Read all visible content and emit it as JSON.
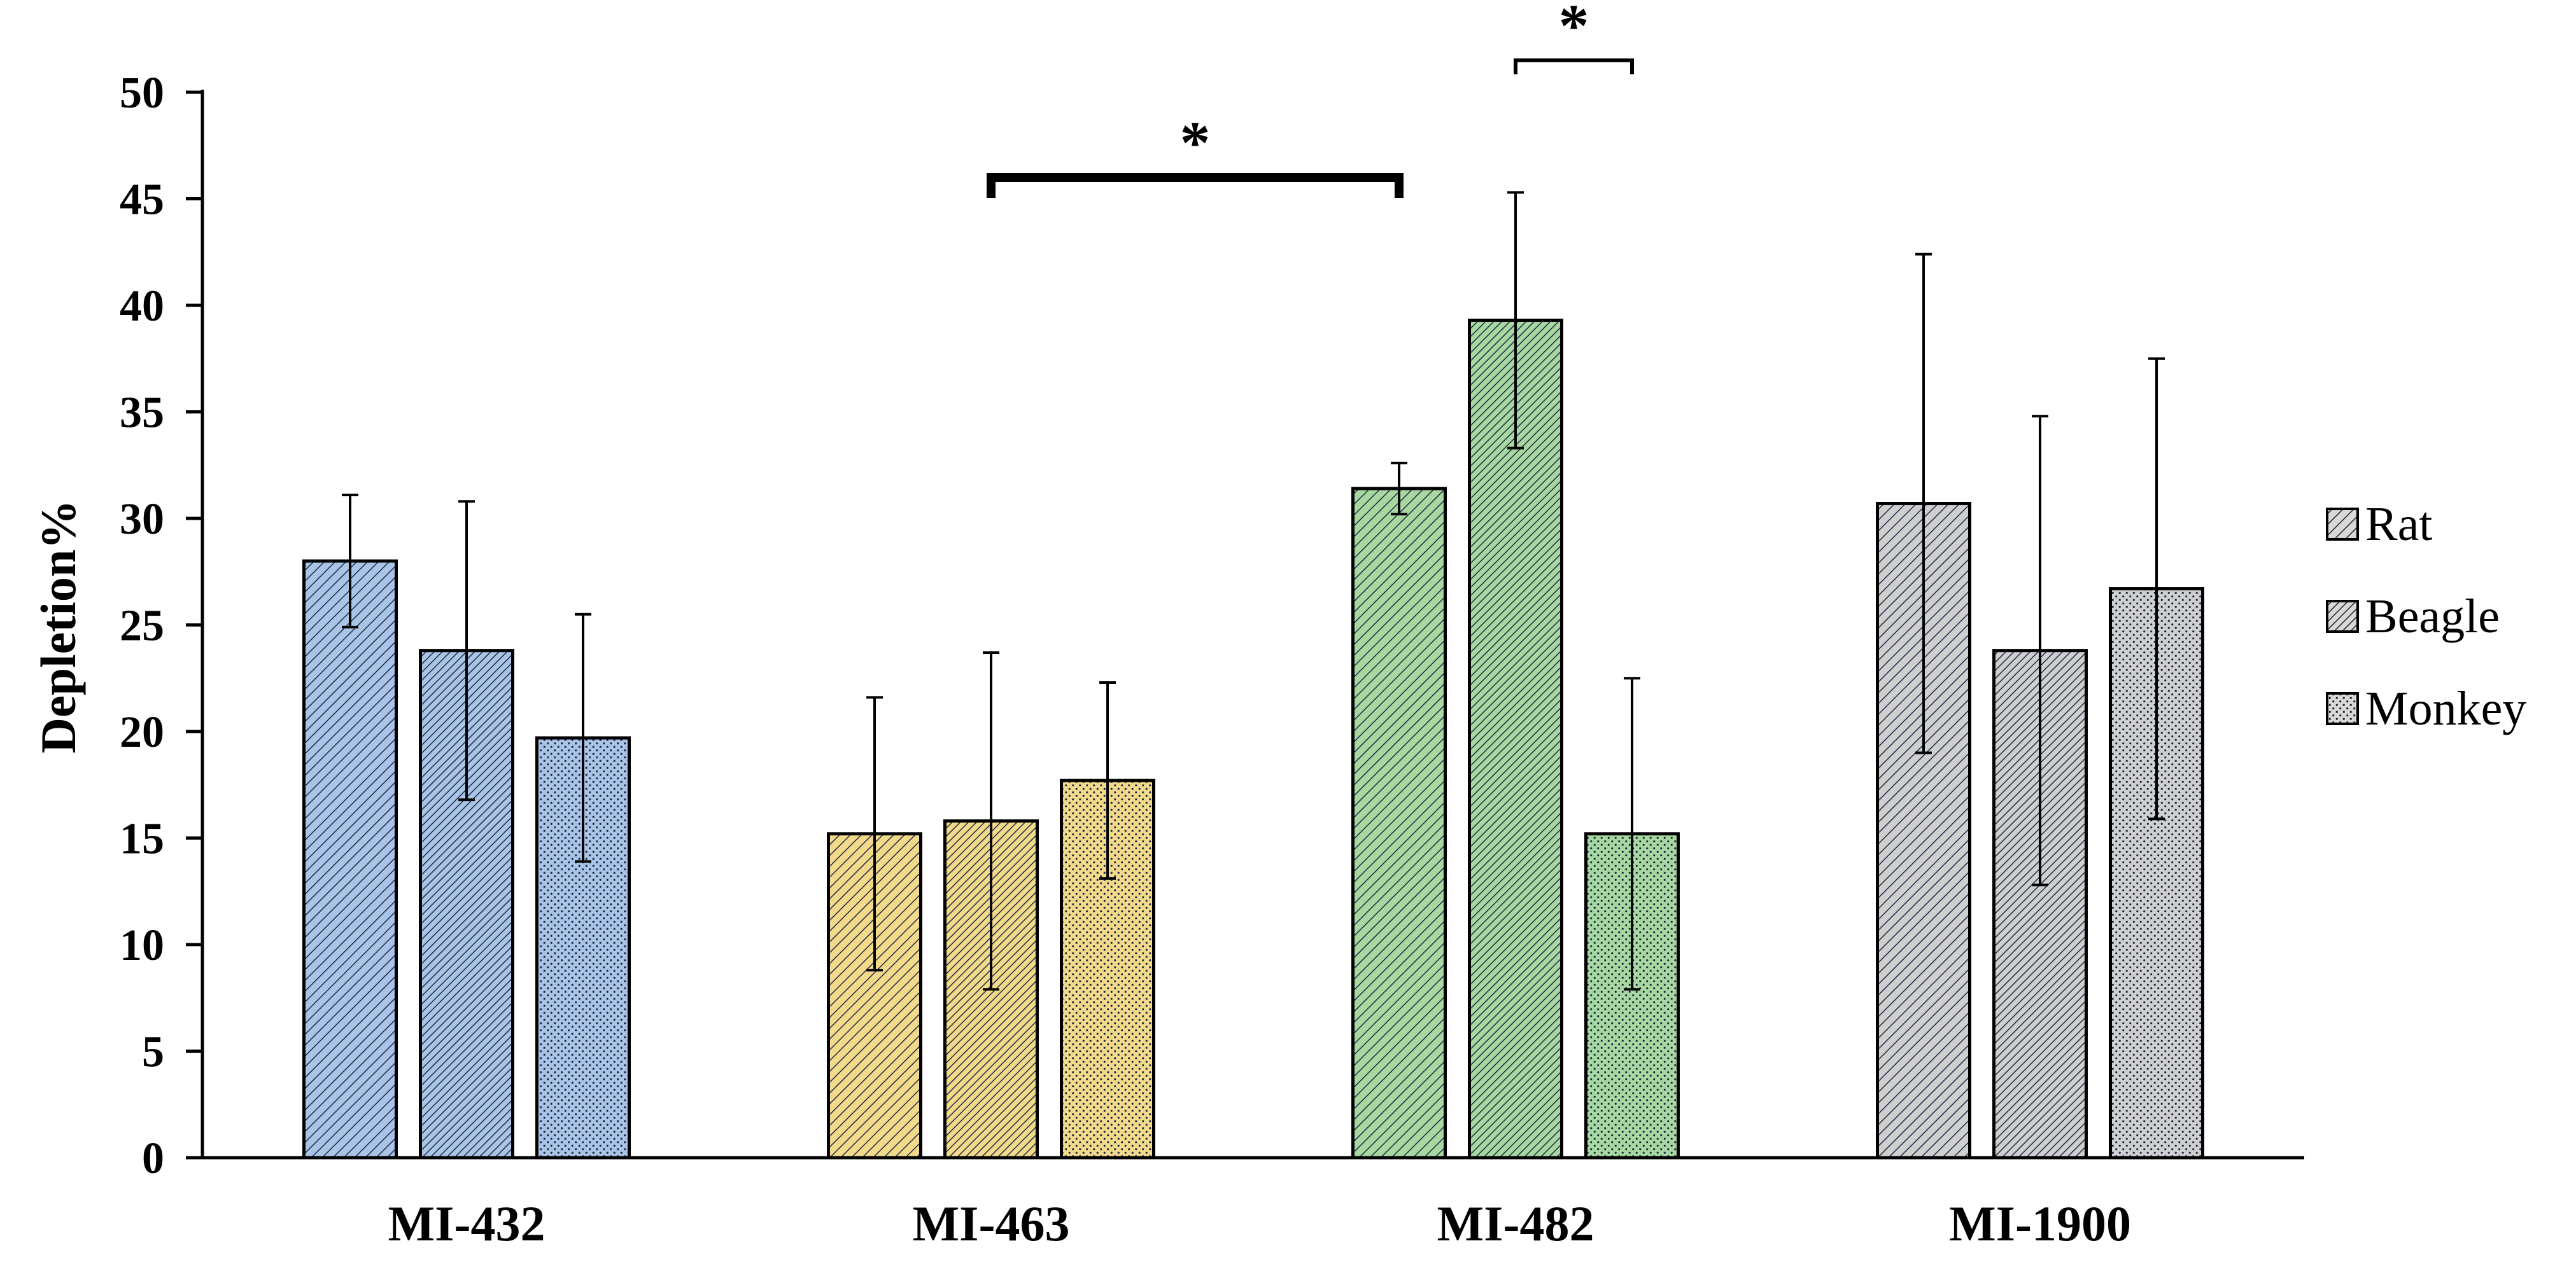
{
  "chart_data": {
    "type": "bar",
    "title": "",
    "xlabel": "",
    "ylabel": "Depletion%",
    "ylim": [
      0,
      50
    ],
    "yticks": [
      0,
      5,
      10,
      15,
      20,
      25,
      30,
      35,
      40,
      45,
      50
    ],
    "categories": [
      "MI-432",
      "MI-463",
      "MI-482",
      "MI-1900"
    ],
    "category_colors": [
      "#a9c4e6",
      "#f3da8a",
      "#a8d8a0",
      "#cfcfcf"
    ],
    "series": [
      {
        "name": "Rat",
        "pattern": "diag-wide",
        "values": [
          28.0,
          15.2,
          31.4,
          30.7
        ],
        "errors": [
          3.1,
          6.4,
          1.2,
          11.7
        ]
      },
      {
        "name": "Beagle",
        "pattern": "diag-dense",
        "values": [
          23.8,
          15.8,
          39.3,
          23.8
        ],
        "errors": [
          7.0,
          7.9,
          6.0,
          11.0
        ]
      },
      {
        "name": "Monkey",
        "pattern": "dots",
        "values": [
          19.7,
          17.7,
          15.2,
          26.7
        ],
        "errors": [
          5.8,
          4.6,
          7.3,
          10.8
        ]
      }
    ],
    "legend_position": "right",
    "grid": false,
    "annotations": [
      {
        "label": "*",
        "from": {
          "category": 1,
          "series": 1
        },
        "to": {
          "category": 2,
          "series": 0
        },
        "y": 46
      },
      {
        "label": "*",
        "from": {
          "category": 2,
          "series": 1
        },
        "to": {
          "category": 2,
          "series": 2
        },
        "y": 51.5
      }
    ]
  }
}
